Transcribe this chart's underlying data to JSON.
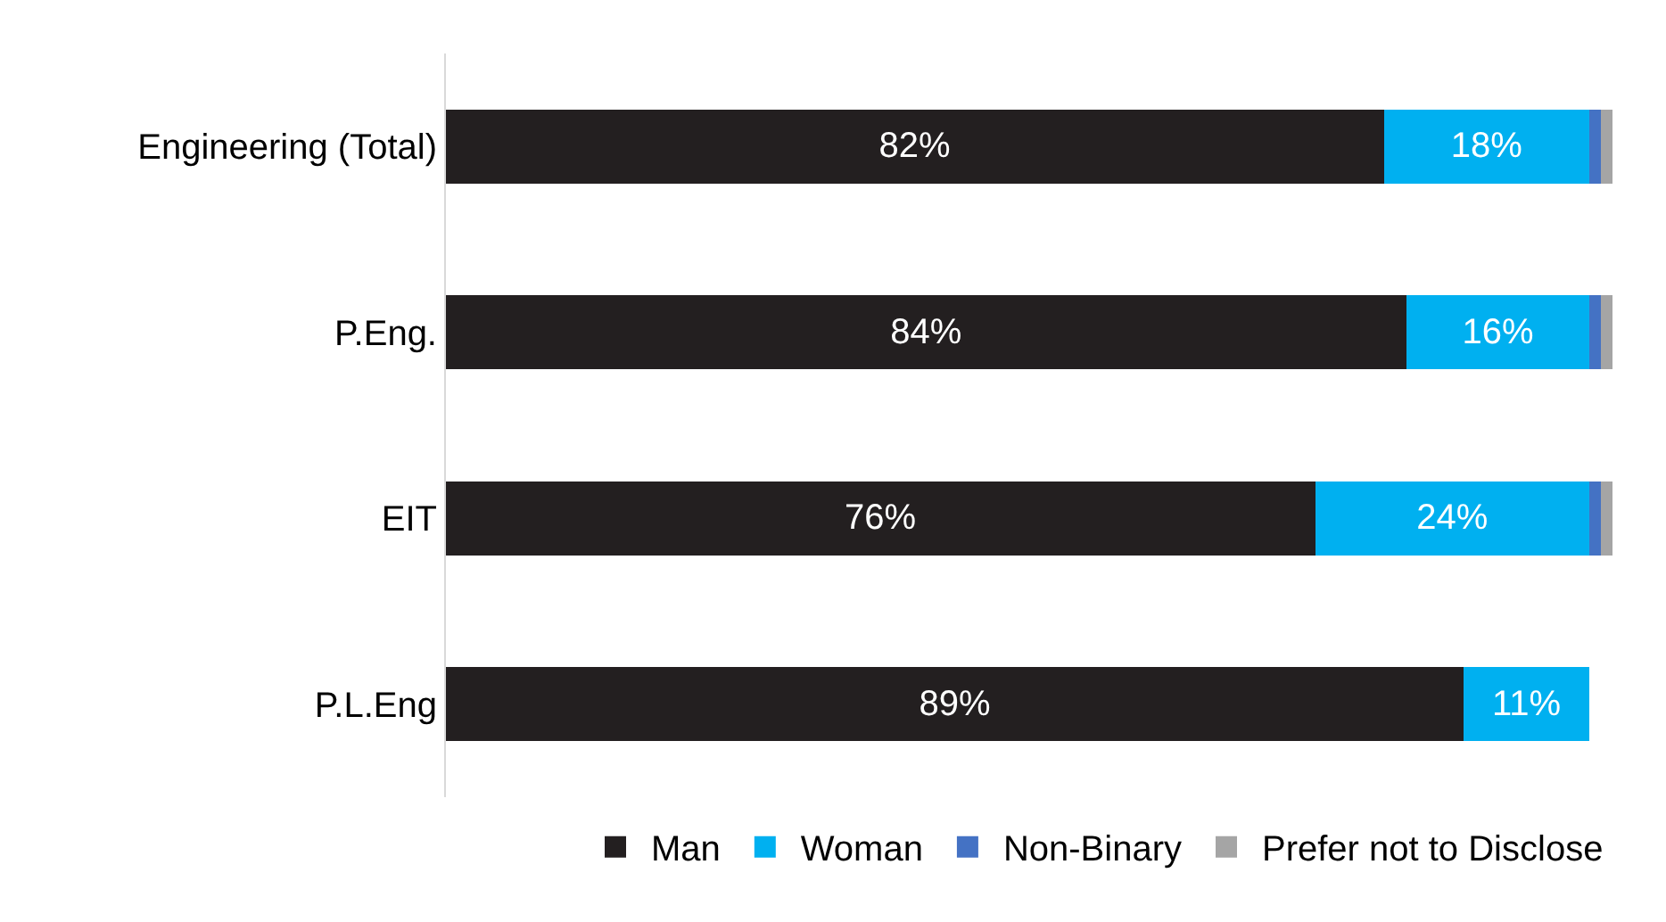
{
  "chart_data": {
    "type": "bar",
    "orientation": "horizontal",
    "stacked": true,
    "categories": [
      "Engineering (Total)",
      "P.Eng.",
      "EIT",
      "P.L.Eng"
    ],
    "series": [
      {
        "name": "Man",
        "color": "#231f20",
        "values": [
          82,
          84,
          76,
          89
        ],
        "value_labels": [
          "82%",
          "84%",
          "76%",
          "89%"
        ]
      },
      {
        "name": "Woman",
        "color": "#00b0f0",
        "values": [
          18,
          16,
          24,
          11
        ],
        "value_labels": [
          "18%",
          "16%",
          "24%",
          "11%"
        ]
      },
      {
        "name": "Non-Binary",
        "color": "#4472c4",
        "values": [
          1,
          1,
          1,
          0
        ]
      },
      {
        "name": "Prefer not to Disclose",
        "color": "#a5a5a5",
        "values": [
          1,
          1,
          1,
          0
        ]
      }
    ],
    "grid": false,
    "legend": "bottom"
  }
}
